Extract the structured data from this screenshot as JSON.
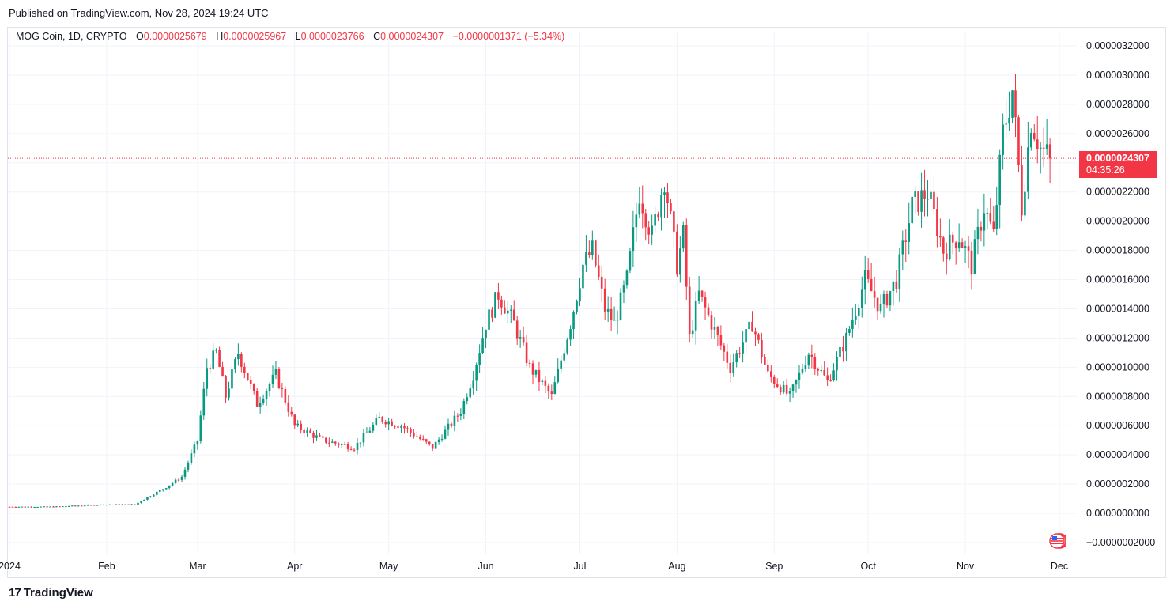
{
  "header": {
    "published": "Published on TradingView.com, Nov 28, 2024 19:24 UTC"
  },
  "legend": {
    "symbol": "MOG Coin, 1D, CRYPTO",
    "open_label": "O",
    "open": "0.0000025679",
    "high_label": "H",
    "high": "0.0000025967",
    "low_label": "L",
    "low": "0.0000023766",
    "close_label": "C",
    "close": "0.0000024307",
    "change": "−0.0000001371 (−5.34%)"
  },
  "price_badge": {
    "price": "0.0000024307",
    "countdown": "04:35:26"
  },
  "footer": {
    "logo_text": "TradingView",
    "logo_mark": "17"
  },
  "colors": {
    "up": "#089981",
    "down": "#f23645",
    "grid": "#f0f3fa",
    "text": "#131722"
  },
  "chart_data": {
    "type": "candlestick",
    "title": "MOG Coin, 1D, CRYPTO",
    "y_axis": {
      "ticks": [
        "0.0000032000",
        "0.0000030000",
        "0.0000028000",
        "0.0000026000",
        "0.0000024000",
        "0.0000022000",
        "0.0000020000",
        "0.0000018000",
        "0.0000016000",
        "0.0000014000",
        "0.0000012000",
        "0.0000010000",
        "0.0000008000",
        "0.0000006000",
        "0.0000004000",
        "0.0000002000",
        "0.0000000000",
        "−0.0000002000"
      ],
      "range": [
        -2e-07,
        3.2e-06
      ]
    },
    "x_axis": {
      "ticks": [
        "2024",
        "Feb",
        "Mar",
        "Apr",
        "May",
        "Jun",
        "Jul",
        "Aug",
        "Sep",
        "Oct",
        "Nov",
        "Dec"
      ]
    },
    "last_price": 2.4307e-06,
    "grid": true,
    "series_points": [
      [
        "2024-01-01",
        4.5e-08
      ],
      [
        "2024-01-15",
        4.5e-08
      ],
      [
        "2024-01-31",
        6e-08
      ],
      [
        "2024-02-10",
        6e-08
      ],
      [
        "2024-02-20",
        1.8e-07
      ],
      [
        "2024-02-25",
        2.5e-07
      ],
      [
        "2024-03-01",
        5e-07
      ],
      [
        "2024-03-04",
        1e-06
      ],
      [
        "2024-03-07",
        1.1e-06
      ],
      [
        "2024-03-10",
        8e-07
      ],
      [
        "2024-03-14",
        1.1e-06
      ],
      [
        "2024-03-20",
        7.5e-07
      ],
      [
        "2024-03-26",
        9.5e-07
      ],
      [
        "2024-04-01",
        6e-07
      ],
      [
        "2024-04-10",
        5e-07
      ],
      [
        "2024-04-20",
        4.5e-07
      ],
      [
        "2024-04-28",
        6.5e-07
      ],
      [
        "2024-05-05",
        6e-07
      ],
      [
        "2024-05-15",
        4.5e-07
      ],
      [
        "2024-05-24",
        7e-07
      ],
      [
        "2024-05-28",
        9.5e-07
      ],
      [
        "2024-06-01",
        1.3e-06
      ],
      [
        "2024-06-05",
        1.5e-06
      ],
      [
        "2024-06-10",
        1.3e-06
      ],
      [
        "2024-06-15",
        1e-06
      ],
      [
        "2024-06-22",
        8e-07
      ],
      [
        "2024-06-28",
        1.3e-06
      ],
      [
        "2024-07-02",
        1.7e-06
      ],
      [
        "2024-07-05",
        1.8e-06
      ],
      [
        "2024-07-09",
        1.4e-06
      ],
      [
        "2024-07-12",
        1.3e-06
      ],
      [
        "2024-07-16",
        1.6e-06
      ],
      [
        "2024-07-20",
        2.2e-06
      ],
      [
        "2024-07-24",
        1.9e-06
      ],
      [
        "2024-07-28",
        2.3e-06
      ],
      [
        "2024-08-01",
        1.7e-06
      ],
      [
        "2024-08-03",
        1.9e-06
      ],
      [
        "2024-08-05",
        1.2e-06
      ],
      [
        "2024-08-08",
        1.5e-06
      ],
      [
        "2024-08-12",
        1.3e-06
      ],
      [
        "2024-08-18",
        1e-06
      ],
      [
        "2024-08-25",
        1.3e-06
      ],
      [
        "2024-08-30",
        9.5e-07
      ],
      [
        "2024-09-06",
        8e-07
      ],
      [
        "2024-09-12",
        1.1e-06
      ],
      [
        "2024-09-18",
        9e-07
      ],
      [
        "2024-09-24",
        1.2e-06
      ],
      [
        "2024-09-30",
        1.6e-06
      ],
      [
        "2024-10-05",
        1.4e-06
      ],
      [
        "2024-10-10",
        1.6e-06
      ],
      [
        "2024-10-15",
        2.1e-06
      ],
      [
        "2024-10-20",
        2.2e-06
      ],
      [
        "2024-10-25",
        1.8e-06
      ],
      [
        "2024-10-30",
        1.9e-06
      ],
      [
        "2024-11-03",
        1.7e-06
      ],
      [
        "2024-11-07",
        2.1e-06
      ],
      [
        "2024-11-10",
        1.9e-06
      ],
      [
        "2024-11-13",
        2.6e-06
      ],
      [
        "2024-11-16",
        2.9e-06
      ],
      [
        "2024-11-19",
        2.1e-06
      ],
      [
        "2024-11-22",
        2.7e-06
      ],
      [
        "2024-11-25",
        2.5e-06
      ],
      [
        "2024-11-28",
        2.4307e-06
      ]
    ]
  }
}
